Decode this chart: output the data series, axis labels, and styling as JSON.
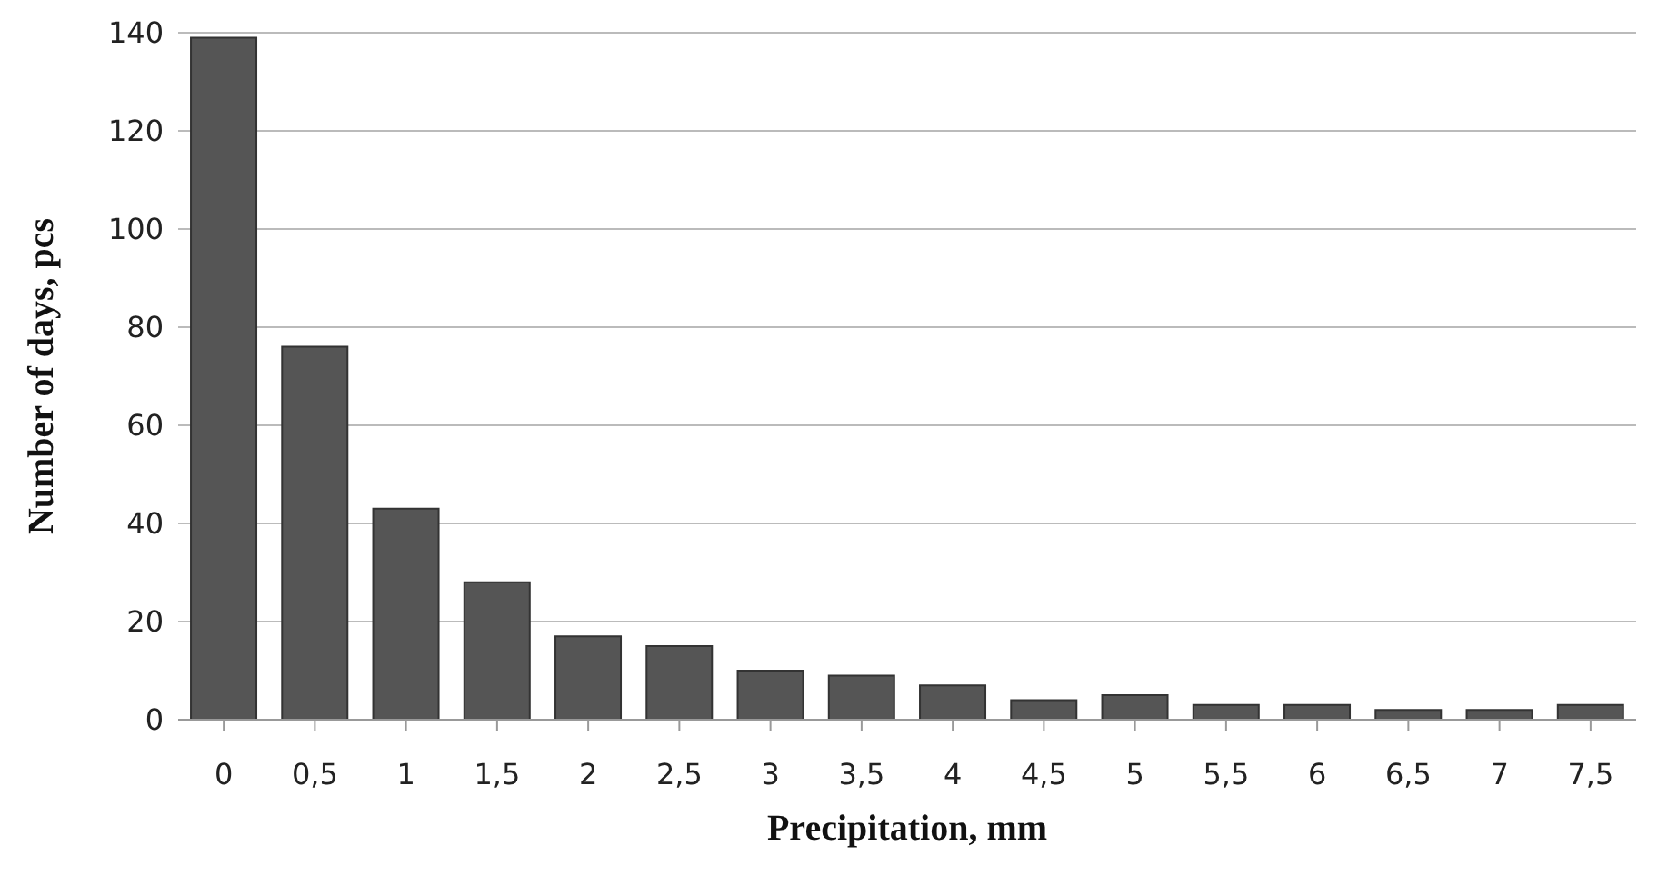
{
  "chart_data": {
    "type": "bar",
    "xlabel": "Precipitation, mm",
    "ylabel": "Number of days, pcs",
    "categories": [
      "0",
      "0,5",
      "1",
      "1,5",
      "2",
      "2,5",
      "3",
      "3,5",
      "4",
      "4,5",
      "5",
      "5,5",
      "6",
      "6,5",
      "7",
      "7,5"
    ],
    "values": [
      139,
      76,
      43,
      28,
      17,
      15,
      10,
      9,
      7,
      4,
      5,
      3,
      3,
      2,
      2,
      3
    ],
    "color": "#555555",
    "ylim": [
      0,
      140
    ],
    "yticks": [
      0,
      20,
      40,
      60,
      80,
      100,
      120,
      140
    ],
    "grid": "y"
  }
}
